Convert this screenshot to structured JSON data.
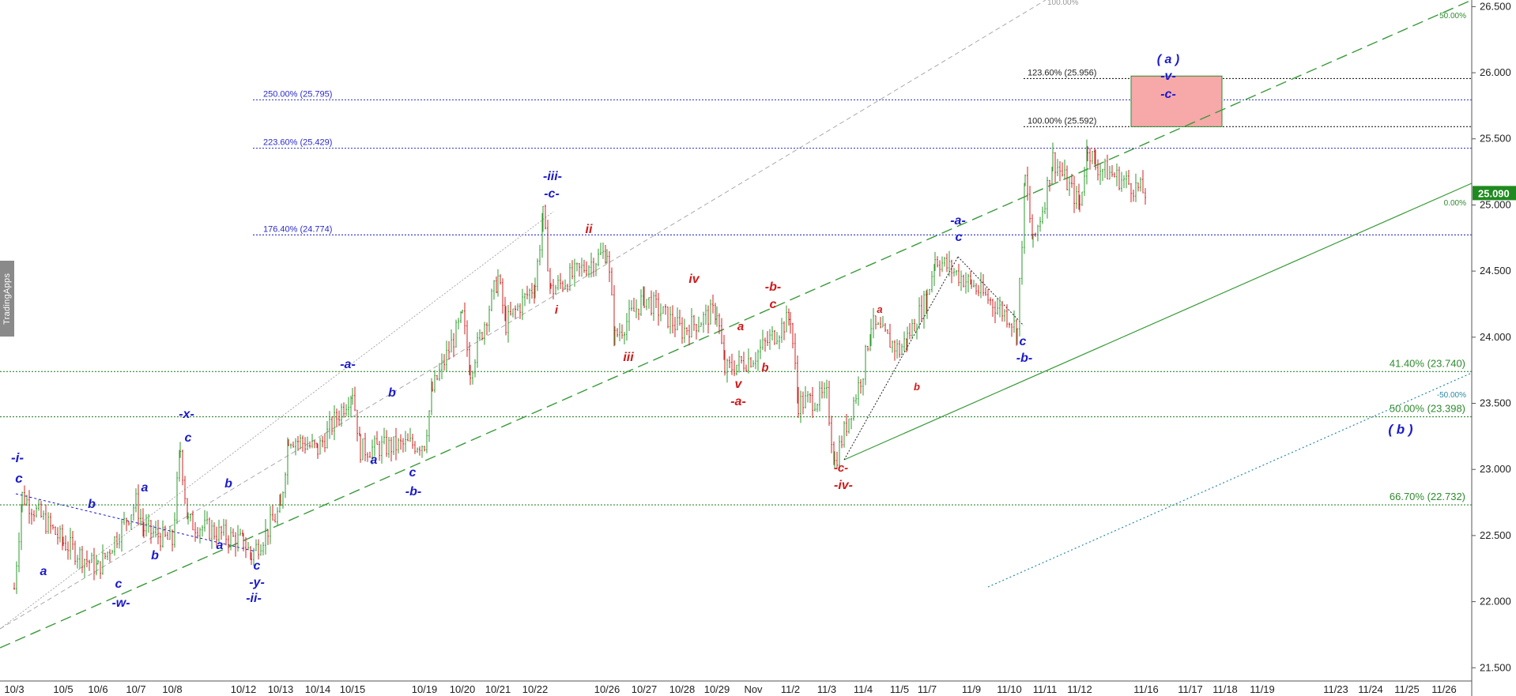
{
  "watermark": "TradingApps",
  "chart_data": {
    "type": "candlestick",
    "price_scale": {
      "ylim": [
        21.4,
        26.55
      ],
      "ticks": [
        "21.500",
        "22.000",
        "22.500",
        "23.000",
        "23.500",
        "24.000",
        "24.500",
        "25.000",
        "25.500",
        "26.000",
        "26.500"
      ],
      "last_price": "25.090",
      "last_price_color": "#1f8a1f"
    },
    "x_labels": [
      "10/3",
      "10/5",
      "10/6",
      "10/7",
      "10/8",
      "10/12",
      "10/13",
      "10/14",
      "10/15",
      "10/19",
      "10/20",
      "10/21",
      "10/22",
      "10/26",
      "10/27",
      "10/28",
      "10/29",
      "Nov",
      "11/2",
      "11/3",
      "11/4",
      "11/5",
      "11/7",
      "11/9",
      "11/10",
      "11/11",
      "11/12",
      "11/16",
      "11/17",
      "11/18",
      "11/19",
      "11/23",
      "11/24",
      "11/25",
      "11/26"
    ],
    "price_path": [
      [
        "10/3",
        22.1
      ],
      [
        "10/3",
        22.8
      ],
      [
        "10/5",
        22.45
      ],
      [
        "10/6",
        22.25
      ],
      [
        "10/7",
        22.75
      ],
      [
        "10/7",
        22.55
      ],
      [
        "10/8",
        22.45
      ],
      [
        "10/8",
        23.15
      ],
      [
        "10/8",
        22.6
      ],
      [
        "10/12",
        22.45
      ],
      [
        "10/12",
        22.35
      ],
      [
        "10/13",
        22.7
      ],
      [
        "10/13",
        23.25
      ],
      [
        "10/14",
        23.15
      ],
      [
        "10/15",
        23.6
      ],
      [
        "10/15",
        23.15
      ],
      [
        "10/19",
        23.2
      ],
      [
        "10/19",
        23.6
      ],
      [
        "10/20",
        24.15
      ],
      [
        "10/20",
        23.75
      ],
      [
        "10/21",
        24.45
      ],
      [
        "10/21",
        24.1
      ],
      [
        "10/22",
        24.4
      ],
      [
        "10/22",
        24.92
      ],
      [
        "10/22",
        24.35
      ],
      [
        "10/26",
        24.65
      ],
      [
        "10/26",
        24.0
      ],
      [
        "10/27",
        24.3
      ],
      [
        "10/28",
        24.05
      ],
      [
        "10/29",
        24.2
      ],
      [
        "10/29",
        23.75
      ],
      [
        "Nov",
        23.85
      ],
      [
        "11/2",
        24.15
      ],
      [
        "11/2",
        23.5
      ],
      [
        "11/3",
        23.55
      ],
      [
        "11/3",
        23.05
      ],
      [
        "11/4",
        23.75
      ],
      [
        "11/4",
        24.1
      ],
      [
        "11/5",
        23.9
      ],
      [
        "11/5",
        24.0
      ],
      [
        "11/7",
        24.3
      ],
      [
        "11/7",
        24.6
      ],
      [
        "11/9",
        24.4
      ],
      [
        "11/10",
        24.15
      ],
      [
        "11/10",
        24.05
      ],
      [
        "11/10",
        25.2
      ],
      [
        "11/10",
        24.7
      ],
      [
        "11/11",
        25.05
      ],
      [
        "11/11",
        25.35
      ],
      [
        "11/12",
        25.0
      ],
      [
        "11/12",
        25.45
      ],
      [
        "11/12",
        25.3
      ],
      [
        "11/16",
        25.09
      ]
    ],
    "fibonacci_levels": [
      {
        "label": "250.00% (25.795)",
        "value": 25.795,
        "color": "#2b2bcc"
      },
      {
        "label": "223.60% (25.429)",
        "value": 25.429,
        "color": "#2b2bcc"
      },
      {
        "label": "176.40% (24.774)",
        "value": 24.774,
        "color": "#2b2bcc"
      },
      {
        "label": "123.60% (25.956)",
        "value": 25.956,
        "color": "#222222"
      },
      {
        "label": "100.00% (25.592)",
        "value": 25.592,
        "color": "#222222"
      },
      {
        "label": "41.40% (23.740)",
        "value": 23.74,
        "color": "#2e8b2e"
      },
      {
        "label": "50.00% (23.398)",
        "value": 23.398,
        "color": "#2e8b2e"
      },
      {
        "label": "66.70% (22.732)",
        "value": 22.732,
        "color": "#2e8b2e"
      }
    ],
    "channel_labels": [
      {
        "text": "100.00%",
        "color": "#999999"
      },
      {
        "text": "50.00%",
        "color": "#2e8b2e"
      },
      {
        "text": "0.00%",
        "color": "#2e8b2e"
      },
      {
        "text": "-50.00%",
        "color": "#2a8aa8"
      }
    ],
    "target_box": {
      "x_from": "11/12",
      "x_to": "11/16",
      "y_from": 25.592,
      "y_to": 25.975,
      "fill": "#f7a8a8"
    },
    "wave_labels": [
      {
        "text": "-i-",
        "color": "#1a1acc"
      },
      {
        "text": "c",
        "color": "#1a1acc"
      },
      {
        "text": "a",
        "color": "#1a1acc"
      },
      {
        "text": "b",
        "color": "#1a1acc"
      },
      {
        "text": "c",
        "color": "#1a1acc"
      },
      {
        "text": "-w-",
        "color": "#1a1acc"
      },
      {
        "text": "a",
        "color": "#1a1acc"
      },
      {
        "text": "b",
        "color": "#1a1acc"
      },
      {
        "text": "-x-",
        "color": "#1a1acc"
      },
      {
        "text": "c",
        "color": "#1a1acc"
      },
      {
        "text": "b",
        "color": "#1a1acc"
      },
      {
        "text": "a",
        "color": "#1a1acc"
      },
      {
        "text": "c",
        "color": "#1a1acc"
      },
      {
        "text": "-y-",
        "color": "#1a1acc"
      },
      {
        "text": "-ii-",
        "color": "#1a1acc"
      },
      {
        "text": "-a-",
        "color": "#1a1acc"
      },
      {
        "text": "b",
        "color": "#1a1acc"
      },
      {
        "text": "a",
        "color": "#1a1acc"
      },
      {
        "text": "c",
        "color": "#1a1acc"
      },
      {
        "text": "-b-",
        "color": "#1a1acc"
      },
      {
        "text": "-iii-",
        "color": "#1a1acc"
      },
      {
        "text": "-c-",
        "color": "#1a1acc"
      },
      {
        "text": "ii",
        "color": "#d01a1a"
      },
      {
        "text": "i",
        "color": "#d01a1a"
      },
      {
        "text": "iii",
        "color": "#d01a1a"
      },
      {
        "text": "iv",
        "color": "#d01a1a"
      },
      {
        "text": "a",
        "color": "#d01a1a"
      },
      {
        "text": "b",
        "color": "#d01a1a"
      },
      {
        "text": "v",
        "color": "#d01a1a"
      },
      {
        "text": "-a-",
        "color": "#d01a1a"
      },
      {
        "text": "-b-",
        "color": "#d01a1a"
      },
      {
        "text": "c",
        "color": "#d01a1a"
      },
      {
        "text": "-c-",
        "color": "#d01a1a"
      },
      {
        "text": "-iv-",
        "color": "#d01a1a"
      },
      {
        "text": "a",
        "color": "#d01a1a"
      },
      {
        "text": "b",
        "color": "#d01a1a"
      },
      {
        "text": "-a-",
        "color": "#1a1acc"
      },
      {
        "text": "c",
        "color": "#1a1acc"
      },
      {
        "text": "c",
        "color": "#1a1acc"
      },
      {
        "text": "-b-",
        "color": "#1a1acc"
      },
      {
        "text": "( a )",
        "color": "#1a1acc"
      },
      {
        "text": "-v-",
        "color": "#1a1acc"
      },
      {
        "text": "-c-",
        "color": "#1a1acc"
      },
      {
        "text": "( b )",
        "color": "#1a1acc"
      }
    ]
  }
}
